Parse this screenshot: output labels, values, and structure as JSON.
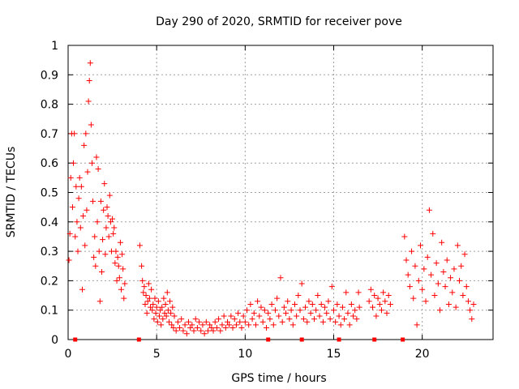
{
  "chart_data": {
    "type": "scatter",
    "title": "Day 290 of 2020, SRMTID for receiver pove",
    "xlabel": "GPS time / hours",
    "ylabel": "SRMTID / TECUs",
    "xlim": [
      0,
      24
    ],
    "ylim": [
      0,
      1
    ],
    "xticks": [
      0,
      5,
      10,
      15,
      20
    ],
    "yticks": [
      0,
      0.1,
      0.2,
      0.3,
      0.4,
      0.5,
      0.6,
      0.7,
      0.8,
      0.9,
      1
    ],
    "xtick_labels": [
      "0",
      "5",
      "10",
      "15",
      "20"
    ],
    "ytick_labels": [
      "0",
      "0.1",
      "0.2",
      "0.3",
      "0.4",
      "0.5",
      "0.6",
      "0.7",
      "0.8",
      "0.9",
      "1"
    ],
    "grid": true,
    "marker": "+",
    "color": "#ff0000",
    "series": [
      {
        "name": "SRMTID",
        "points": [
          [
            0.05,
            0.27
          ],
          [
            0.1,
            0.36
          ],
          [
            0.15,
            0.55
          ],
          [
            0.2,
            0.7
          ],
          [
            0.25,
            0.45
          ],
          [
            0.3,
            0.6
          ],
          [
            0.35,
            0.7
          ],
          [
            0.4,
            0.35
          ],
          [
            0.45,
            0.52
          ],
          [
            0.5,
            0.4
          ],
          [
            0.55,
            0.3
          ],
          [
            0.6,
            0.48
          ],
          [
            0.65,
            0.55
          ],
          [
            0.7,
            0.38
          ],
          [
            0.75,
            0.52
          ],
          [
            0.8,
            0.17
          ],
          [
            0.85,
            0.42
          ],
          [
            0.9,
            0.66
          ],
          [
            0.95,
            0.32
          ],
          [
            1.0,
            0.7
          ],
          [
            1.05,
            0.44
          ],
          [
            1.1,
            0.57
          ],
          [
            1.15,
            0.81
          ],
          [
            1.2,
            0.88
          ],
          [
            1.25,
            0.94
          ],
          [
            1.3,
            0.73
          ],
          [
            1.35,
            0.6
          ],
          [
            1.4,
            0.47
          ],
          [
            1.45,
            0.28
          ],
          [
            1.5,
            0.35
          ],
          [
            1.55,
            0.25
          ],
          [
            1.6,
            0.62
          ],
          [
            1.65,
            0.4
          ],
          [
            1.7,
            0.58
          ],
          [
            1.75,
            0.3
          ],
          [
            1.8,
            0.13
          ],
          [
            1.85,
            0.47
          ],
          [
            1.9,
            0.23
          ],
          [
            1.95,
            0.34
          ],
          [
            2.0,
            0.44
          ],
          [
            2.05,
            0.53
          ],
          [
            2.1,
            0.29
          ],
          [
            2.15,
            0.38
          ],
          [
            2.2,
            0.45
          ],
          [
            2.25,
            0.42
          ],
          [
            2.3,
            0.35
          ],
          [
            2.35,
            0.49
          ],
          [
            2.4,
            0.4
          ],
          [
            2.45,
            0.3
          ],
          [
            2.5,
            0.41
          ],
          [
            2.55,
            0.36
          ],
          [
            2.6,
            0.38
          ],
          [
            2.65,
            0.26
          ],
          [
            2.7,
            0.3
          ],
          [
            2.75,
            0.2
          ],
          [
            2.8,
            0.28
          ],
          [
            2.85,
            0.25
          ],
          [
            2.9,
            0.21
          ],
          [
            2.95,
            0.33
          ],
          [
            3.0,
            0.17
          ],
          [
            3.05,
            0.29
          ],
          [
            3.1,
            0.24
          ],
          [
            3.15,
            0.14
          ],
          [
            3.2,
            0.19
          ],
          [
            4.05,
            0.32
          ],
          [
            4.15,
            0.25
          ],
          [
            4.2,
            0.2
          ],
          [
            4.25,
            0.16
          ],
          [
            4.3,
            0.18
          ],
          [
            4.35,
            0.12
          ],
          [
            4.4,
            0.15
          ],
          [
            4.45,
            0.09
          ],
          [
            4.5,
            0.13
          ],
          [
            4.55,
            0.19
          ],
          [
            4.6,
            0.14
          ],
          [
            4.65,
            0.11
          ],
          [
            4.7,
            0.17
          ],
          [
            4.75,
            0.1
          ],
          [
            4.8,
            0.12
          ],
          [
            4.85,
            0.07
          ],
          [
            4.9,
            0.14
          ],
          [
            4.95,
            0.09
          ],
          [
            5.0,
            0.11
          ],
          [
            5.05,
            0.06
          ],
          [
            5.1,
            0.13
          ],
          [
            5.15,
            0.08
          ],
          [
            5.2,
            0.1
          ],
          [
            5.25,
            0.05
          ],
          [
            5.3,
            0.11
          ],
          [
            5.35,
            0.07
          ],
          [
            5.4,
            0.14
          ],
          [
            5.45,
            0.09
          ],
          [
            5.5,
            0.12
          ],
          [
            5.55,
            0.08
          ],
          [
            5.6,
            0.16
          ],
          [
            5.65,
            0.1
          ],
          [
            5.7,
            0.06
          ],
          [
            5.75,
            0.13
          ],
          [
            5.8,
            0.09
          ],
          [
            5.85,
            0.05
          ],
          [
            5.9,
            0.11
          ],
          [
            5.95,
            0.04
          ],
          [
            6.0,
            0.08
          ],
          [
            6.1,
            0.03
          ],
          [
            6.2,
            0.06
          ],
          [
            6.3,
            0.04
          ],
          [
            6.4,
            0.07
          ],
          [
            6.5,
            0.03
          ],
          [
            6.6,
            0.05
          ],
          [
            6.7,
            0.02
          ],
          [
            6.8,
            0.06
          ],
          [
            6.9,
            0.04
          ],
          [
            7.0,
            0.05
          ],
          [
            7.1,
            0.03
          ],
          [
            7.2,
            0.07
          ],
          [
            7.3,
            0.04
          ],
          [
            7.4,
            0.06
          ],
          [
            7.5,
            0.03
          ],
          [
            7.6,
            0.05
          ],
          [
            7.7,
            0.02
          ],
          [
            7.8,
            0.06
          ],
          [
            7.9,
            0.03
          ],
          [
            8.0,
            0.05
          ],
          [
            8.1,
            0.04
          ],
          [
            8.2,
            0.03
          ],
          [
            8.3,
            0.06
          ],
          [
            8.4,
            0.04
          ],
          [
            8.5,
            0.07
          ],
          [
            8.6,
            0.03
          ],
          [
            8.7,
            0.05
          ],
          [
            8.8,
            0.08
          ],
          [
            8.9,
            0.04
          ],
          [
            9.0,
            0.06
          ],
          [
            9.1,
            0.05
          ],
          [
            9.2,
            0.08
          ],
          [
            9.3,
            0.04
          ],
          [
            9.4,
            0.07
          ],
          [
            9.5,
            0.05
          ],
          [
            9.6,
            0.09
          ],
          [
            9.7,
            0.06
          ],
          [
            9.8,
            0.04
          ],
          [
            9.9,
            0.08
          ],
          [
            10.0,
            0.06
          ],
          [
            10.1,
            0.1
          ],
          [
            10.2,
            0.05
          ],
          [
            10.3,
            0.12
          ],
          [
            10.4,
            0.07
          ],
          [
            10.5,
            0.09
          ],
          [
            10.6,
            0.05
          ],
          [
            10.7,
            0.13
          ],
          [
            10.8,
            0.08
          ],
          [
            10.9,
            0.11
          ],
          [
            11.0,
            0.06
          ],
          [
            11.1,
            0.1
          ],
          [
            11.2,
            0.04
          ],
          [
            11.3,
            0.09
          ],
          [
            11.4,
            0.07
          ],
          [
            11.5,
            0.12
          ],
          [
            11.6,
            0.05
          ],
          [
            11.7,
            0.1
          ],
          [
            11.8,
            0.14
          ],
          [
            11.9,
            0.08
          ],
          [
            12.0,
            0.21
          ],
          [
            12.1,
            0.06
          ],
          [
            12.2,
            0.11
          ],
          [
            12.3,
            0.09
          ],
          [
            12.4,
            0.13
          ],
          [
            12.5,
            0.07
          ],
          [
            12.6,
            0.1
          ],
          [
            12.7,
            0.05
          ],
          [
            12.8,
            0.12
          ],
          [
            12.9,
            0.08
          ],
          [
            13.0,
            0.15
          ],
          [
            13.1,
            0.1
          ],
          [
            13.2,
            0.19
          ],
          [
            13.3,
            0.07
          ],
          [
            13.4,
            0.11
          ],
          [
            13.5,
            0.06
          ],
          [
            13.6,
            0.13
          ],
          [
            13.7,
            0.09
          ],
          [
            13.8,
            0.12
          ],
          [
            13.9,
            0.07
          ],
          [
            14.0,
            0.1
          ],
          [
            14.1,
            0.15
          ],
          [
            14.2,
            0.08
          ],
          [
            14.3,
            0.12
          ],
          [
            14.4,
            0.06
          ],
          [
            14.5,
            0.11
          ],
          [
            14.6,
            0.09
          ],
          [
            14.7,
            0.13
          ],
          [
            14.8,
            0.07
          ],
          [
            14.9,
            0.18
          ],
          [
            15.0,
            0.1
          ],
          [
            15.1,
            0.06
          ],
          [
            15.2,
            0.12
          ],
          [
            15.3,
            0.08
          ],
          [
            15.4,
            0.05
          ],
          [
            15.5,
            0.11
          ],
          [
            15.6,
            0.07
          ],
          [
            15.7,
            0.16
          ],
          [
            15.8,
            0.09
          ],
          [
            15.9,
            0.05
          ],
          [
            16.0,
            0.12
          ],
          [
            16.1,
            0.08
          ],
          [
            16.2,
            0.1
          ],
          [
            16.3,
            0.07
          ],
          [
            16.4,
            0.16
          ],
          [
            16.45,
            0.11
          ],
          [
            17.0,
            0.13
          ],
          [
            17.1,
            0.17
          ],
          [
            17.2,
            0.11
          ],
          [
            17.3,
            0.15
          ],
          [
            17.4,
            0.08
          ],
          [
            17.5,
            0.14
          ],
          [
            17.6,
            0.12
          ],
          [
            17.7,
            0.1
          ],
          [
            17.8,
            0.16
          ],
          [
            17.9,
            0.13
          ],
          [
            18.0,
            0.09
          ],
          [
            18.1,
            0.15
          ],
          [
            18.2,
            0.12
          ],
          [
            19.0,
            0.35
          ],
          [
            19.1,
            0.27
          ],
          [
            19.2,
            0.22
          ],
          [
            19.3,
            0.18
          ],
          [
            19.4,
            0.3
          ],
          [
            19.5,
            0.14
          ],
          [
            19.6,
            0.25
          ],
          [
            19.7,
            0.05
          ],
          [
            19.8,
            0.2
          ],
          [
            19.9,
            0.32
          ],
          [
            20.0,
            0.17
          ],
          [
            20.1,
            0.24
          ],
          [
            20.2,
            0.13
          ],
          [
            20.3,
            0.28
          ],
          [
            20.4,
            0.44
          ],
          [
            20.5,
            0.22
          ],
          [
            20.6,
            0.36
          ],
          [
            20.7,
            0.15
          ],
          [
            20.8,
            0.26
          ],
          [
            20.9,
            0.19
          ],
          [
            21.0,
            0.1
          ],
          [
            21.1,
            0.33
          ],
          [
            21.2,
            0.23
          ],
          [
            21.3,
            0.18
          ],
          [
            21.4,
            0.27
          ],
          [
            21.5,
            0.12
          ],
          [
            21.6,
            0.21
          ],
          [
            21.7,
            0.16
          ],
          [
            21.8,
            0.24
          ],
          [
            21.9,
            0.11
          ],
          [
            22.0,
            0.32
          ],
          [
            22.1,
            0.2
          ],
          [
            22.2,
            0.25
          ],
          [
            22.3,
            0.15
          ],
          [
            22.4,
            0.29
          ],
          [
            22.5,
            0.18
          ],
          [
            22.6,
            0.13
          ],
          [
            22.7,
            0.1
          ],
          [
            22.8,
            0.07
          ],
          [
            22.9,
            0.12
          ]
        ]
      }
    ],
    "baseline_markers_x": [
      0.4,
      4.0,
      11.3,
      13.2,
      15.3,
      17.3,
      18.9
    ]
  }
}
